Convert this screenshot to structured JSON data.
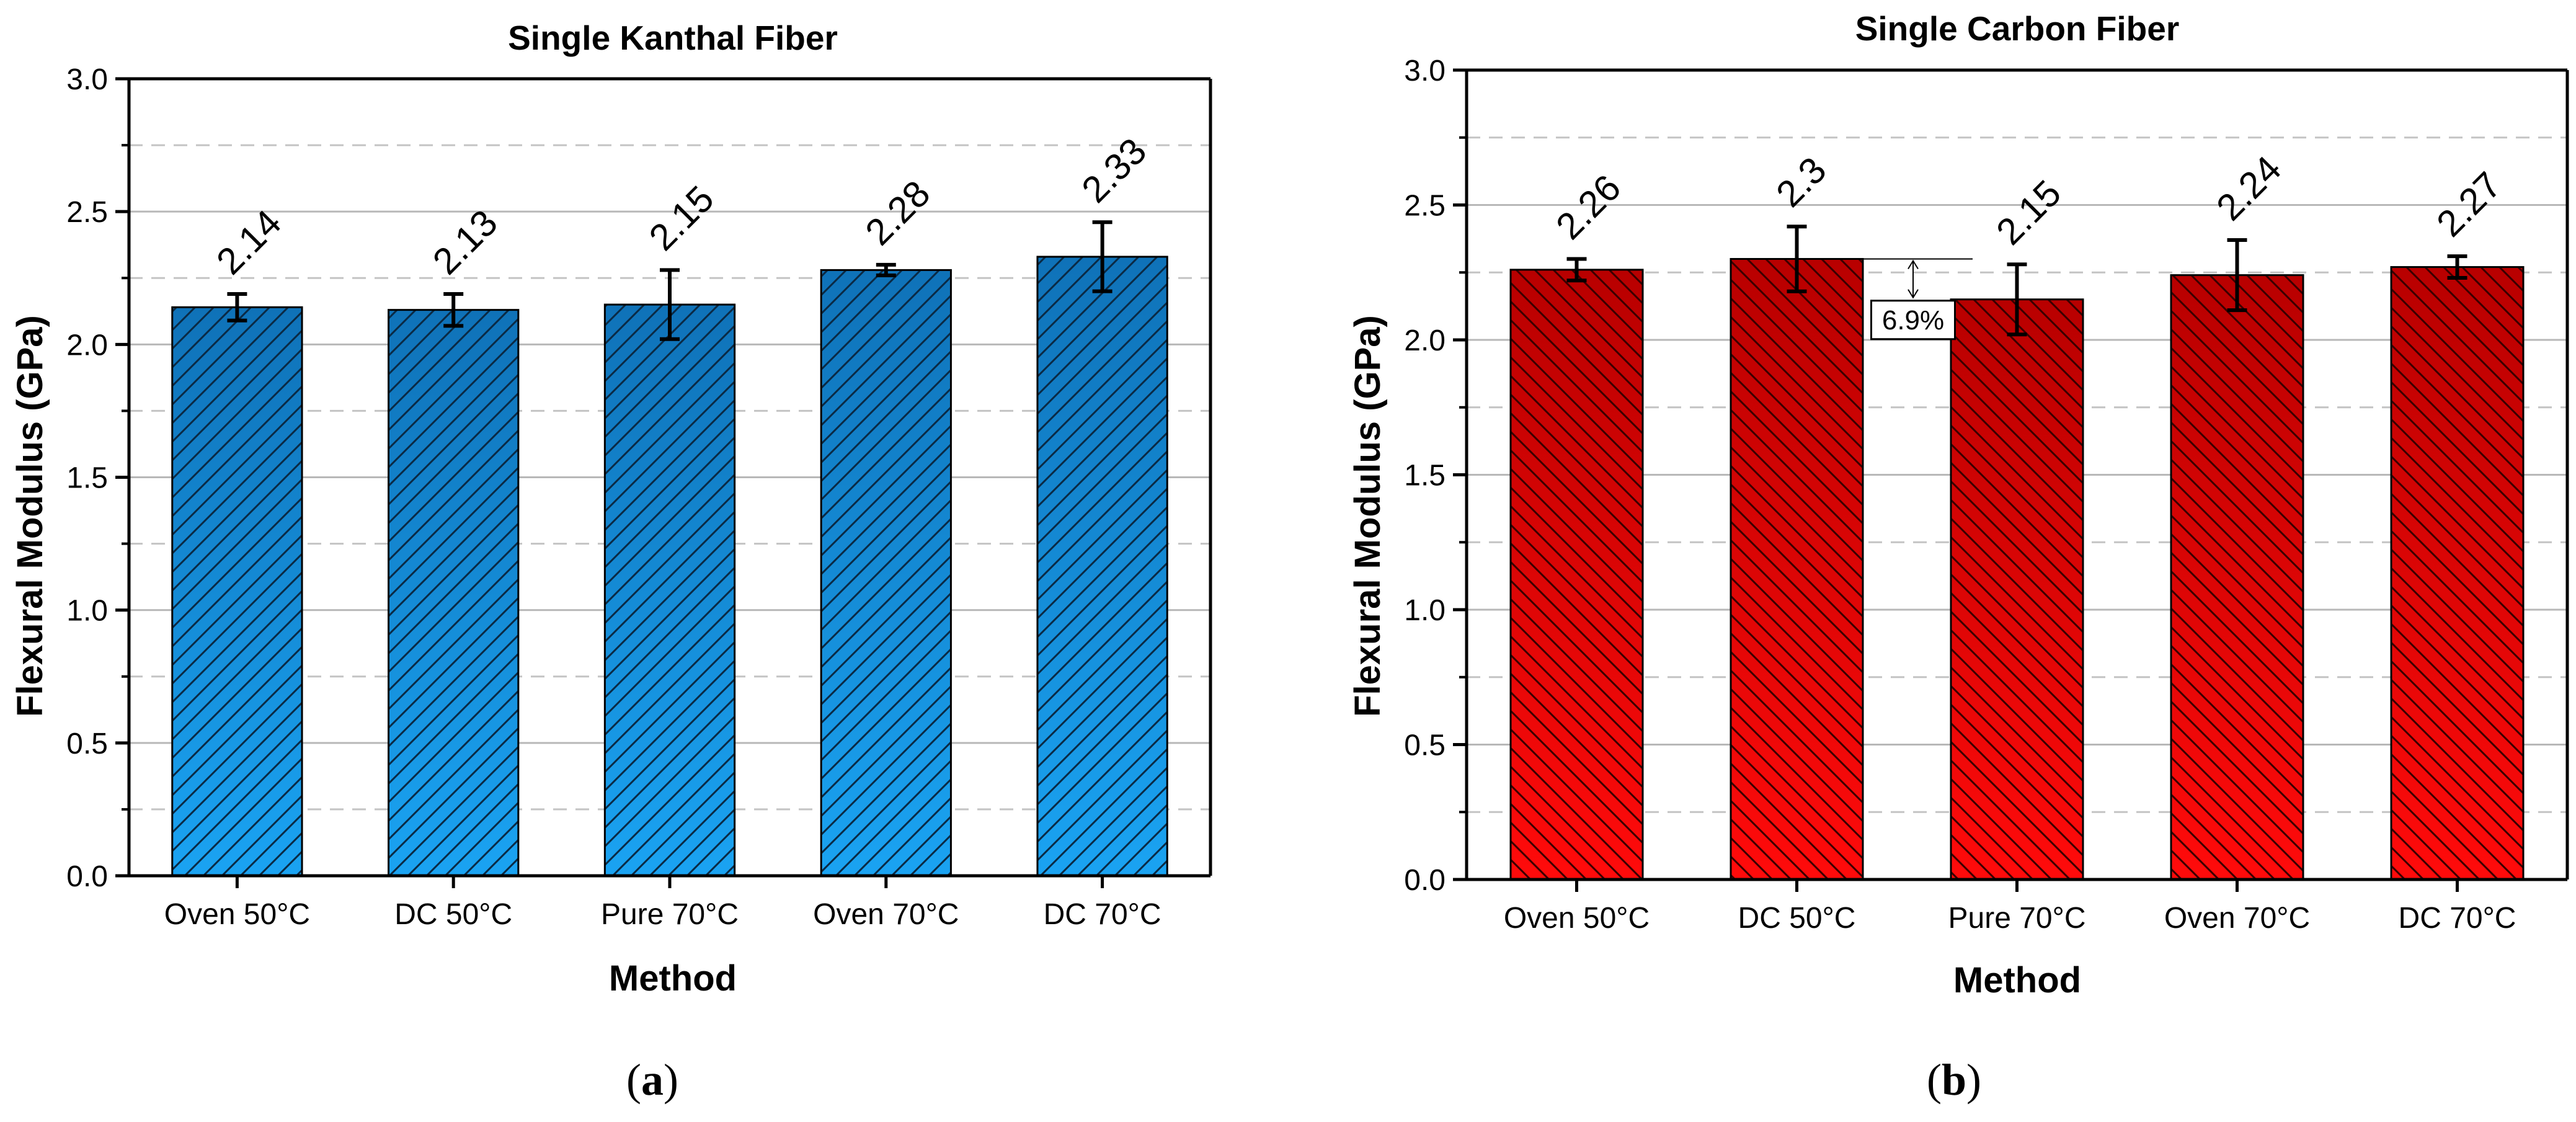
{
  "chart_data": [
    {
      "type": "bar",
      "title": "Single Kanthal  Fiber",
      "xlabel": "Method",
      "ylabel": "Flexural Modulus (GPa)",
      "ylim": [
        0,
        3.0
      ],
      "yticks": [
        "0.0",
        "0.5",
        "1.0",
        "1.5",
        "2.0",
        "2.5",
        "3.0"
      ],
      "grid": "horizontal (solid major, dashed minor)",
      "categories": [
        "Oven 50°C",
        "DC 50°C",
        "Pure 70°C",
        "Oven 70°C",
        "DC 70°C"
      ],
      "values": [
        2.14,
        2.13,
        2.15,
        2.28,
        2.33
      ],
      "errors": [
        0.05,
        0.06,
        0.13,
        0.02,
        0.13
      ],
      "data_labels": [
        "2.14",
        "2.13",
        "2.15",
        "2.28",
        "2.33"
      ],
      "color": "#1e8fe0",
      "panel_label": "a"
    },
    {
      "type": "bar",
      "title": "Single Carbon Fiber",
      "xlabel": "Method",
      "ylabel": "Flexural Modulus (GPa)",
      "ylim": [
        0,
        3.0
      ],
      "yticks": [
        "0.0",
        "0.5",
        "1.0",
        "1.5",
        "2.0",
        "2.5",
        "3.0"
      ],
      "grid": "horizontal (solid major, dashed minor)",
      "categories": [
        "Oven 50°C",
        "DC 50°C",
        "Pure 70°C",
        "Oven 70°C",
        "DC 70°C"
      ],
      "values": [
        2.26,
        2.3,
        2.15,
        2.24,
        2.27
      ],
      "errors": [
        0.04,
        0.12,
        0.13,
        0.13,
        0.04
      ],
      "data_labels": [
        "2.26",
        "2.3",
        "2.15",
        "2.24",
        "2.27"
      ],
      "color": "#dd0a0a",
      "annotation": {
        "text": "6.9%",
        "from_category": "DC 50°C",
        "to_category": "Pure 70°C"
      },
      "panel_label": "b"
    }
  ],
  "colors": {
    "kanthal_top": "#0f72b8",
    "kanthal_bottom": "#1aa3f2",
    "carbon_top": "#b80000",
    "carbon_bottom": "#ff0b0b"
  }
}
